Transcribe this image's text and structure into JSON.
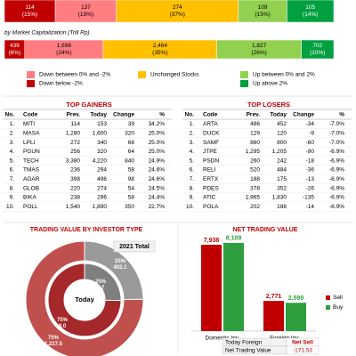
{
  "chart_data": [
    {
      "type": "bar",
      "orientation": "horizontal",
      "stacked": true,
      "series": [
        {
          "name": "Down below -2%",
          "color": "#c00000",
          "values": [
            114
          ],
          "share_labels": [
            "(15%)"
          ]
        },
        {
          "name": "Down between 0% and -2%",
          "color": "#ff7c80",
          "values": [
            137
          ],
          "share_labels": [
            "(19%)"
          ]
        },
        {
          "name": "Unchanged Stocks",
          "color": "#ffc000",
          "values": [
            274
          ],
          "share_labels": [
            "(37%)"
          ]
        },
        {
          "name": "Up between 0% and 2%",
          "color": "#92d050",
          "values": [
            109
          ],
          "share_labels": [
            "(15%)"
          ]
        },
        {
          "name": "Up above 2%",
          "color": "#00a040",
          "values": [
            105
          ],
          "share_labels": [
            "(14%)"
          ]
        }
      ]
    },
    {
      "type": "bar",
      "orientation": "horizontal",
      "stacked": true,
      "subtitle": "by Market Capitalization (Trill Rp)",
      "series": [
        {
          "color": "#c00000",
          "values": [
            439
          ],
          "value_labels": [
            "439"
          ],
          "share_labels": [
            "(6%)"
          ]
        },
        {
          "color": "#ff7c80",
          "values": [
            1698
          ],
          "value_labels": [
            "1,698"
          ],
          "share_labels": [
            "(24%)"
          ]
        },
        {
          "color": "#ffc000",
          "values": [
            2464
          ],
          "value_labels": [
            "2,464"
          ],
          "share_labels": [
            "(35%)"
          ]
        },
        {
          "color": "#92d050",
          "values": [
            1827
          ],
          "value_labels": [
            "1,827"
          ],
          "share_labels": [
            "(26%)"
          ]
        },
        {
          "color": "#00a040",
          "values": [
            702
          ],
          "value_labels": [
            "702"
          ],
          "share_labels": [
            "(10%)"
          ]
        }
      ]
    },
    {
      "type": "donut",
      "title": "TRADING VALUE BY INVESTOR TYPE",
      "rings": [
        {
          "name": "2021 Total",
          "colors": [
            "#999999",
            "#c0504d"
          ],
          "values": [
            402.1,
            1217.5
          ],
          "value_labels": [
            "402.1",
            "1,217.5"
          ],
          "share_labels": [
            "25%",
            "75%"
          ]
        },
        {
          "name": "Today",
          "colors": [
            "#7f7f7f",
            "#a5282a"
          ],
          "values": [
            2.7,
            8.0
          ],
          "value_labels": [
            "2.7",
            "8.0"
          ],
          "share_labels": [
            "25%",
            "75%"
          ]
        }
      ]
    },
    {
      "type": "bar",
      "title": "NET TRADING VALUE",
      "categories": [
        "Domestic Inv.",
        "Foreign Inv."
      ],
      "ylim": [
        0,
        9000
      ],
      "series": [
        {
          "name": "Sell",
          "color": "#c00000",
          "values": [
            7938,
            2771
          ],
          "value_labels": [
            "7,938",
            "2,771"
          ]
        },
        {
          "name": "Buy",
          "color": "#2e9e3e",
          "values": [
            8109,
            2599
          ],
          "value_labels": [
            "8,109",
            "2,599"
          ]
        }
      ]
    }
  ],
  "top_gainers": {
    "title": "TOP GAINERS",
    "columns": [
      "No.",
      "Code",
      "Prev.",
      "Today",
      "Change",
      "%"
    ],
    "rows": [
      [
        "1.",
        "MITI",
        "114",
        "153",
        "39",
        "34.2%"
      ],
      [
        "2.",
        "MASA",
        "1,280",
        "1,600",
        "320",
        "25.0%"
      ],
      [
        "3.",
        "LPLI",
        "272",
        "340",
        "68",
        "25.0%"
      ],
      [
        "4.",
        "PGUN",
        "256",
        "320",
        "64",
        "25.0%"
      ],
      [
        "5.",
        "TECH",
        "3,380",
        "4,220",
        "840",
        "24.9%"
      ],
      [
        "6.",
        "TMAS",
        "236",
        "294",
        "58",
        "24.6%"
      ],
      [
        "7.",
        "AGAR",
        "398",
        "496",
        "98",
        "24.6%"
      ],
      [
        "8.",
        "GLOB",
        "220",
        "274",
        "54",
        "24.5%"
      ],
      [
        "9.",
        "BIKA",
        "238",
        "296",
        "58",
        "24.4%"
      ],
      [
        "10.",
        "POLL",
        "1,540",
        "1,890",
        "350",
        "22.7%"
      ]
    ]
  },
  "top_losers": {
    "title": "TOP LOSERS",
    "columns": [
      "No.",
      "Code",
      "Prev.",
      "Today",
      "Change",
      "%"
    ],
    "rows": [
      [
        "1.",
        "ARTA",
        "486",
        "452",
        "-34",
        "-7.0%"
      ],
      [
        "2.",
        "DUCK",
        "129",
        "120",
        "-9",
        "-7.0%"
      ],
      [
        "3.",
        "SAMF",
        "860",
        "800",
        "-60",
        "-7.0%"
      ],
      [
        "4.",
        "JTPE",
        "1,295",
        "1,205",
        "-90",
        "-6.9%"
      ],
      [
        "5.",
        "PSDN",
        "260",
        "242",
        "-18",
        "-6.9%"
      ],
      [
        "6.",
        "RELI",
        "520",
        "484",
        "-36",
        "-6.9%"
      ],
      [
        "7.",
        "ERTX",
        "188",
        "175",
        "-13",
        "-6.9%"
      ],
      [
        "8.",
        "PDES",
        "378",
        "352",
        "-26",
        "-6.9%"
      ],
      [
        "9.",
        "ATIC",
        "1,965",
        "1,830",
        "-135",
        "-6.9%"
      ],
      [
        "10.",
        "POLA",
        "202",
        "188",
        "-14",
        "-6.9%"
      ]
    ]
  },
  "net_summary": {
    "rows": [
      [
        "Today Foreign",
        "Net Sell"
      ],
      [
        "Net Trading Value",
        "-171.53"
      ]
    ]
  }
}
